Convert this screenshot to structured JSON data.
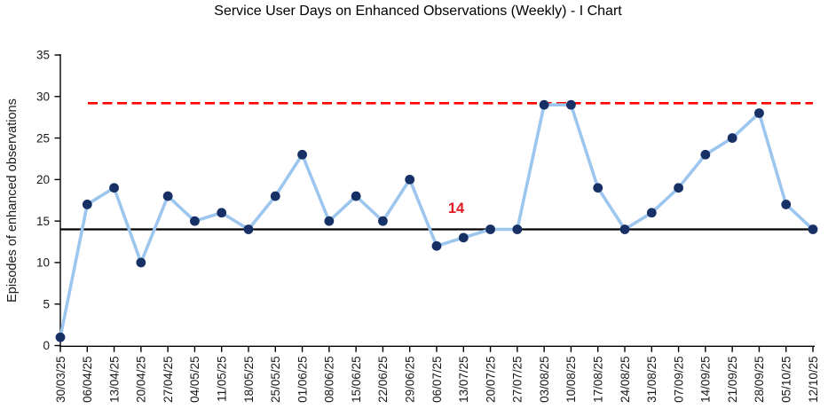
{
  "page": {
    "background": "#ffffff"
  },
  "chart_data": {
    "type": "line",
    "title": "Service User Days on Enhanced Observations (Weekly) - I Chart",
    "ylabel": "Episodes of enhanced observations",
    "xlabel": "",
    "categories": [
      "30/03/25",
      "06/04/25",
      "13/04/25",
      "20/04/25",
      "27/04/25",
      "04/05/25",
      "11/05/25",
      "18/05/25",
      "25/05/25",
      "01/06/25",
      "08/06/25",
      "15/06/25",
      "22/06/25",
      "29/06/25",
      "06/07/25",
      "13/07/25",
      "20/07/25",
      "27/07/25",
      "03/08/25",
      "10/08/25",
      "17/08/25",
      "24/08/25",
      "31/08/25",
      "07/09/25",
      "14/09/25",
      "21/09/25",
      "28/09/25",
      "05/10/25",
      "12/10/25"
    ],
    "series": [
      {
        "name": "Episodes of enhanced observations",
        "values": [
          1,
          17,
          19,
          10,
          18,
          15,
          16,
          14,
          18,
          23,
          15,
          18,
          15,
          20,
          12,
          13,
          14,
          14,
          29,
          29,
          19,
          14,
          16,
          19,
          23,
          25,
          28,
          17,
          14
        ]
      }
    ],
    "reference_lines": [
      {
        "name": "center-line",
        "value": 14,
        "style": "solid",
        "color": "#000000",
        "label": "14",
        "label_color": "#e11b23"
      },
      {
        "name": "upper-control-limit",
        "value": 29.2,
        "style": "dashed",
        "color": "#ff0000"
      }
    ],
    "ylim": [
      0,
      35
    ],
    "yticks": [
      0,
      5,
      10,
      15,
      20,
      25,
      30,
      35
    ],
    "grid": false,
    "legend": "none",
    "colors": {
      "line": "#9dc6ef",
      "marker": "#173066",
      "axis": "#000000",
      "tick_text": "#1a1a1a"
    }
  }
}
